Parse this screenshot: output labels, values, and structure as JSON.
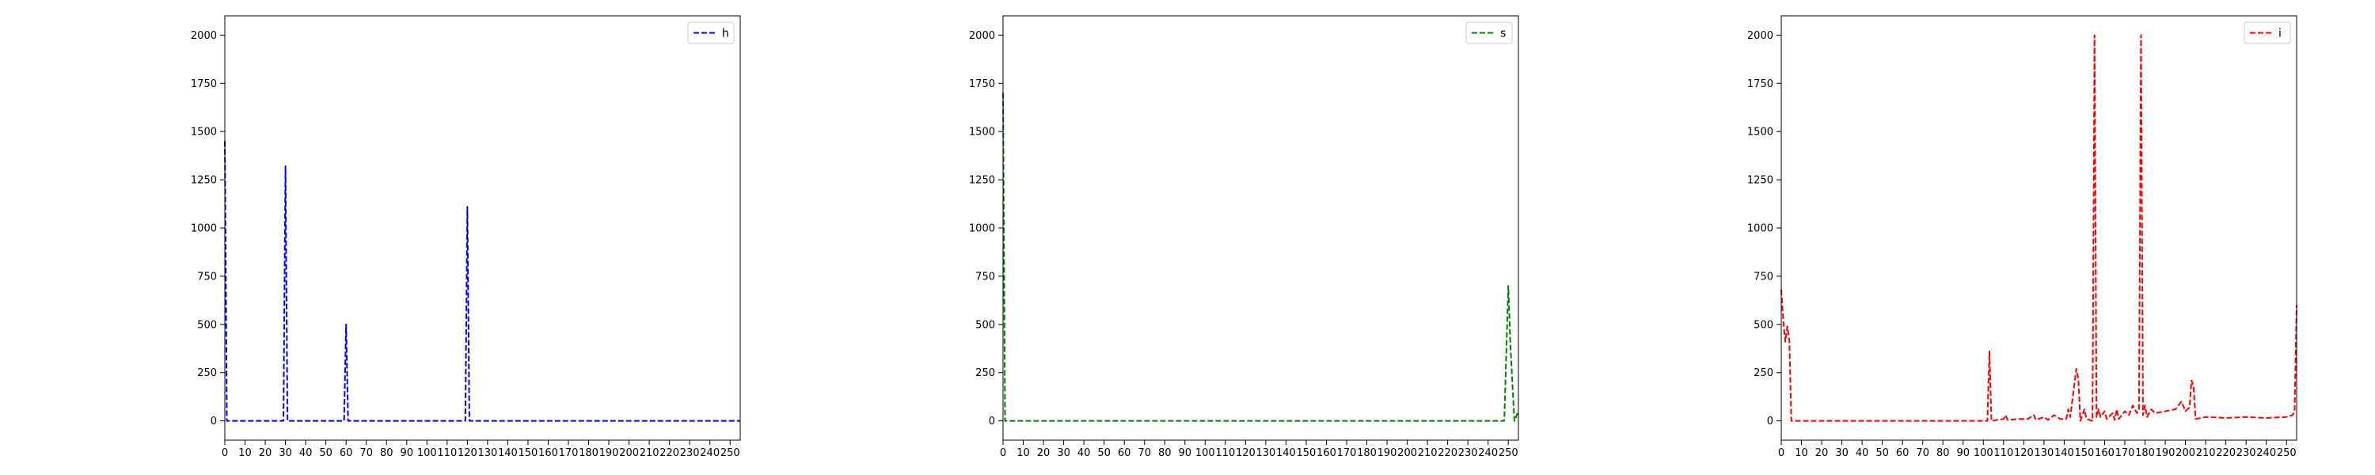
{
  "chart_data": [
    {
      "type": "line",
      "xlim": [
        0,
        255
      ],
      "ylim": [
        -100,
        2100
      ],
      "xticks": [
        0,
        10,
        20,
        30,
        40,
        50,
        60,
        70,
        80,
        90,
        100,
        110,
        120,
        130,
        140,
        150,
        160,
        170,
        180,
        190,
        200,
        210,
        220,
        230,
        240,
        250
      ],
      "yticks": [
        0,
        250,
        500,
        750,
        1000,
        1250,
        1500,
        1750,
        2000
      ],
      "grid": false,
      "legend_position": "top-right",
      "series": [
        {
          "name": "h",
          "color": "#0000ff",
          "linestyle": "dashed",
          "points": [
            [
              0,
              1450
            ],
            [
              1,
              0
            ],
            [
              28,
              0
            ],
            [
              29,
              0
            ],
            [
              30,
              1320
            ],
            [
              31,
              0
            ],
            [
              32,
              0
            ],
            [
              59,
              0
            ],
            [
              60,
              500
            ],
            [
              61,
              0
            ],
            [
              62,
              0
            ],
            [
              119,
              0
            ],
            [
              120,
              1110
            ],
            [
              121,
              0
            ],
            [
              122,
              0
            ],
            [
              255,
              0
            ]
          ]
        }
      ]
    },
    {
      "type": "line",
      "xlim": [
        0,
        255
      ],
      "ylim": [
        -100,
        2100
      ],
      "xticks": [
        0,
        10,
        20,
        30,
        40,
        50,
        60,
        70,
        80,
        90,
        100,
        110,
        120,
        130,
        140,
        150,
        160,
        170,
        180,
        190,
        200,
        210,
        220,
        230,
        240,
        250
      ],
      "yticks": [
        0,
        250,
        500,
        750,
        1000,
        1250,
        1500,
        1750,
        2000
      ],
      "grid": false,
      "legend_position": "top-right",
      "series": [
        {
          "name": "s",
          "color": "#008000",
          "linestyle": "dashed",
          "points": [
            [
              0,
              1700
            ],
            [
              1,
              0
            ],
            [
              248,
              0
            ],
            [
              250,
              700
            ],
            [
              251,
              400
            ],
            [
              253,
              0
            ],
            [
              255,
              50
            ]
          ]
        }
      ]
    },
    {
      "type": "line",
      "xlim": [
        0,
        255
      ],
      "ylim": [
        -100,
        2100
      ],
      "xticks": [
        0,
        10,
        20,
        30,
        40,
        50,
        60,
        70,
        80,
        90,
        100,
        110,
        120,
        130,
        140,
        150,
        160,
        170,
        180,
        190,
        200,
        210,
        220,
        230,
        240,
        250
      ],
      "yticks": [
        0,
        250,
        500,
        750,
        1000,
        1250,
        1500,
        1750,
        2000
      ],
      "grid": false,
      "legend_position": "top-right",
      "series": [
        {
          "name": "i",
          "color": "#ff0000",
          "linestyle": "dashed",
          "points": [
            [
              0,
              680
            ],
            [
              1,
              520
            ],
            [
              2,
              410
            ],
            [
              3,
              490
            ],
            [
              4,
              420
            ],
            [
              5,
              0
            ],
            [
              6,
              0
            ],
            [
              100,
              0
            ],
            [
              102,
              0
            ],
            [
              103,
              360
            ],
            [
              104,
              0
            ],
            [
              110,
              10
            ],
            [
              111,
              30
            ],
            [
              112,
              5
            ],
            [
              118,
              10
            ],
            [
              122,
              10
            ],
            [
              125,
              30
            ],
            [
              126,
              5
            ],
            [
              130,
              20
            ],
            [
              132,
              5
            ],
            [
              135,
              30
            ],
            [
              138,
              10
            ],
            [
              141,
              10
            ],
            [
              142,
              60
            ],
            [
              143,
              20
            ],
            [
              146,
              270
            ],
            [
              147,
              220
            ],
            [
              148,
              0
            ],
            [
              150,
              60
            ],
            [
              151,
              10
            ],
            [
              154,
              0
            ],
            [
              155,
              2000
            ],
            [
              156,
              20
            ],
            [
              157,
              60
            ],
            [
              158,
              20
            ],
            [
              160,
              50
            ],
            [
              161,
              10
            ],
            [
              164,
              40
            ],
            [
              165,
              5
            ],
            [
              166,
              60
            ],
            [
              167,
              10
            ],
            [
              170,
              50
            ],
            [
              172,
              30
            ],
            [
              174,
              80
            ],
            [
              176,
              40
            ],
            [
              177,
              60
            ],
            [
              178,
              2000
            ],
            [
              179,
              30
            ],
            [
              180,
              80
            ],
            [
              181,
              20
            ],
            [
              183,
              60
            ],
            [
              185,
              40
            ],
            [
              190,
              50
            ],
            [
              195,
              60
            ],
            [
              198,
              100
            ],
            [
              200,
              50
            ],
            [
              202,
              70
            ],
            [
              203,
              210
            ],
            [
              204,
              180
            ],
            [
              205,
              10
            ],
            [
              210,
              20
            ],
            [
              220,
              15
            ],
            [
              230,
              20
            ],
            [
              240,
              15
            ],
            [
              250,
              20
            ],
            [
              253,
              30
            ],
            [
              254,
              50
            ],
            [
              255,
              600
            ]
          ]
        }
      ]
    }
  ]
}
